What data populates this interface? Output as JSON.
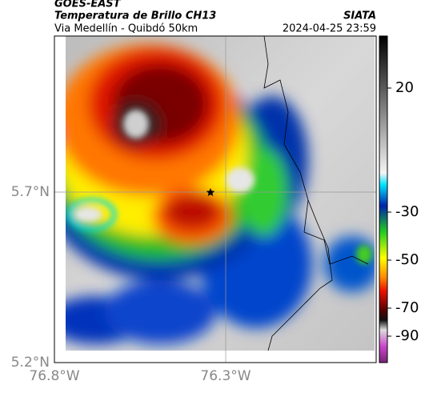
{
  "header": {
    "title": "GOES-EAST",
    "subtitle": "Temperatura de Brillo CH13",
    "source": "SIATA",
    "location": "Via Medellín - Quibdó 50km",
    "timestamp": "2024-04-25 23:59"
  },
  "map": {
    "lat_labels": [
      "5.7°N",
      "5.2°N"
    ],
    "lon_labels": [
      "76.8°W",
      "76.3°W"
    ]
  },
  "colorbar": {
    "ticks": [
      20,
      -30,
      -50,
      -70,
      -90
    ]
  }
}
